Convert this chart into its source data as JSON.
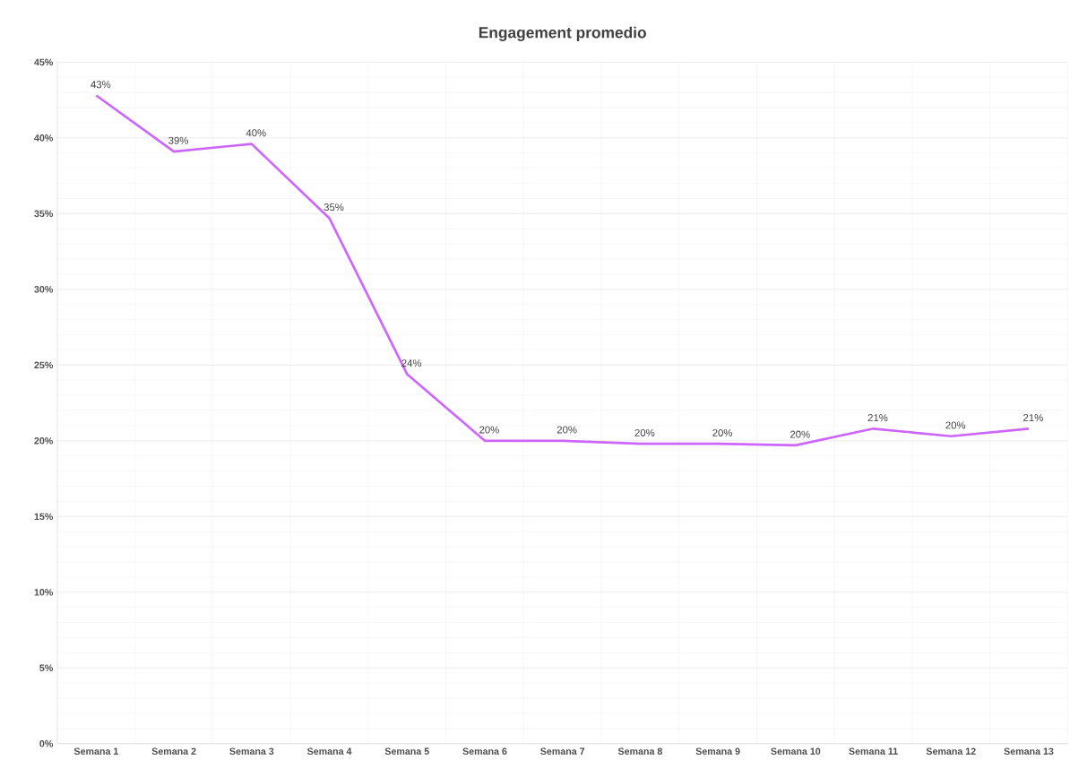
{
  "chart_data": {
    "type": "line",
    "title": "Engagement promedio",
    "categories": [
      "Semana 1",
      "Semana 2",
      "Semana 3",
      "Semana 4",
      "Semana 5",
      "Semana 6",
      "Semana 7",
      "Semana 8",
      "Semana 9",
      "Semana 10",
      "Semana 11",
      "Semana 12",
      "Semana 13"
    ],
    "series": [
      {
        "color": "#cc66ff",
        "values": [
          42.8,
          39.1,
          39.6,
          34.7,
          24.4,
          20.0,
          20.0,
          19.8,
          19.8,
          19.7,
          20.8,
          20.3,
          20.8
        ],
        "value_labels": [
          "43%",
          "39%",
          "40%",
          "35%",
          "24%",
          "20%",
          "20%",
          "20%",
          "20%",
          "20%",
          "21%",
          "20%",
          "21%"
        ]
      }
    ],
    "ylim": [
      0,
      45
    ],
    "yticks": [
      {
        "value": 0,
        "label": "0%"
      },
      {
        "value": 5,
        "label": "5%"
      },
      {
        "value": 10,
        "label": "10%"
      },
      {
        "value": 15,
        "label": "15%"
      },
      {
        "value": 20,
        "label": "20%"
      },
      {
        "value": 25,
        "label": "25%"
      },
      {
        "value": 30,
        "label": "30%"
      },
      {
        "value": 35,
        "label": "35%"
      },
      {
        "value": 40,
        "label": "40%"
      },
      {
        "value": 45,
        "label": "45%"
      }
    ],
    "grid": true,
    "marker": "none",
    "line_style": "solid"
  }
}
